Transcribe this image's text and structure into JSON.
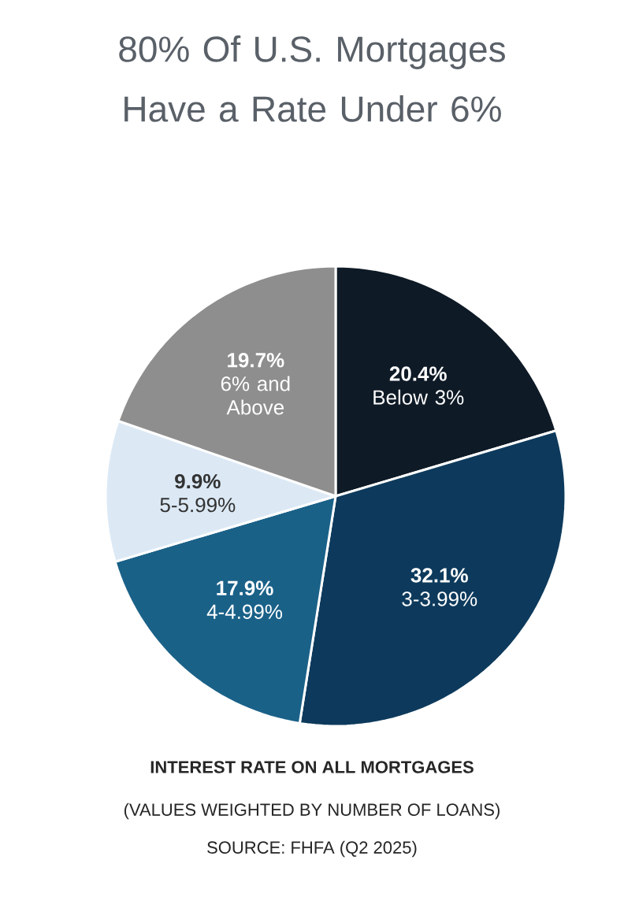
{
  "chart_data": {
    "type": "pie",
    "title": "80% Of U.S. Mortgages Have a Rate Under 6%",
    "categories": [
      "Below 3%",
      "3-3.99%",
      "4-4.99%",
      "5-5.99%",
      "6% and Above"
    ],
    "values": [
      20.4,
      32.1,
      17.9,
      9.9,
      19.7
    ],
    "value_labels": [
      "20.4%",
      "32.1%",
      "17.9%",
      "9.9%",
      "19.7%"
    ],
    "colors": [
      "#0e1a26",
      "#0d3a5c",
      "#1a6188",
      "#dce9f5",
      "#8e8e8e"
    ],
    "annotations": [
      "**INTEREST RATE ON ALL MORTGAGES**",
      "(VALUES WEIGHTED BY NUMBER OF LOANS)",
      "SOURCE: FHFA (Q2 2025)"
    ]
  }
}
